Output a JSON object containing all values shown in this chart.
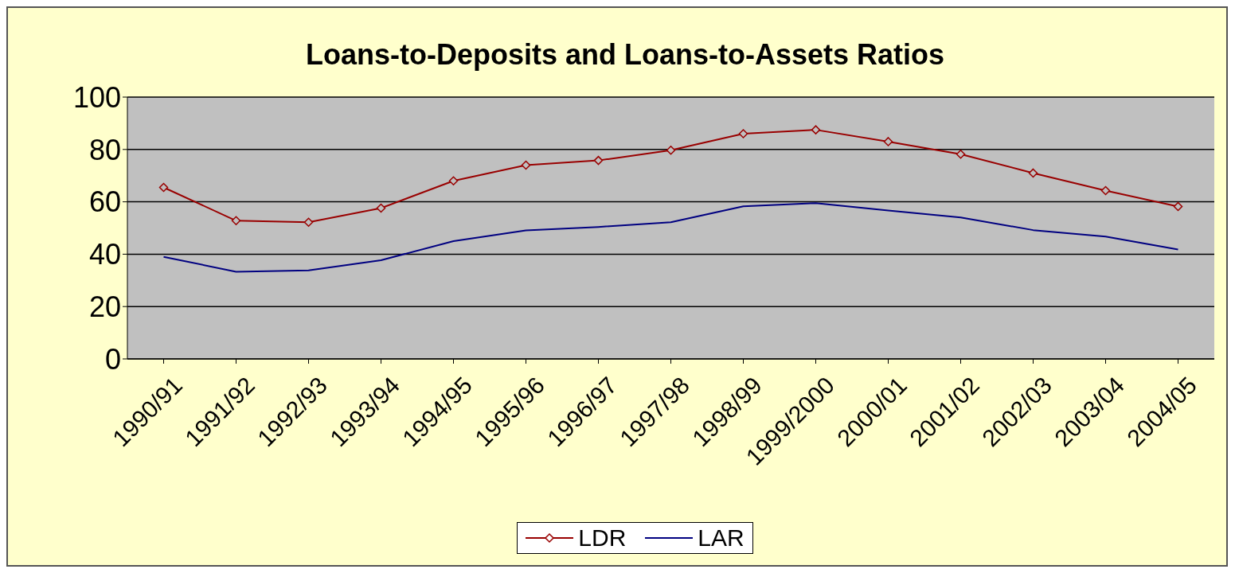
{
  "chart_data": {
    "type": "line",
    "title": "Loans-to-Deposits and Loans-to-Assets Ratios",
    "categories": [
      "1990/91",
      "1991/92",
      "1992/93",
      "1993/94",
      "1994/95",
      "1995/96",
      "1996/97",
      "1997/98",
      "1998/99",
      "1999/2000",
      "2000/01",
      "2001/02",
      "2002/03",
      "2003/04",
      "2004/05"
    ],
    "series": [
      {
        "name": "LDR",
        "color": "#990000",
        "marker": "diamond",
        "values": [
          65.5,
          52.8,
          52.2,
          57.6,
          68,
          74,
          75.8,
          79.7,
          86,
          87.5,
          83,
          78.2,
          71,
          64.3,
          58.2
        ]
      },
      {
        "name": "LAR",
        "color": "#000080",
        "marker": "none",
        "values": [
          39,
          33.3,
          33.8,
          37.7,
          45,
          49.1,
          50.4,
          52.2,
          58.3,
          59.5,
          56.7,
          54,
          49.2,
          46.7,
          41.8
        ]
      }
    ],
    "ylim": [
      0,
      100
    ],
    "yticks": [
      0,
      20,
      40,
      60,
      80,
      100
    ],
    "grid": "y",
    "legend": "bottom",
    "line_style": "solid"
  }
}
